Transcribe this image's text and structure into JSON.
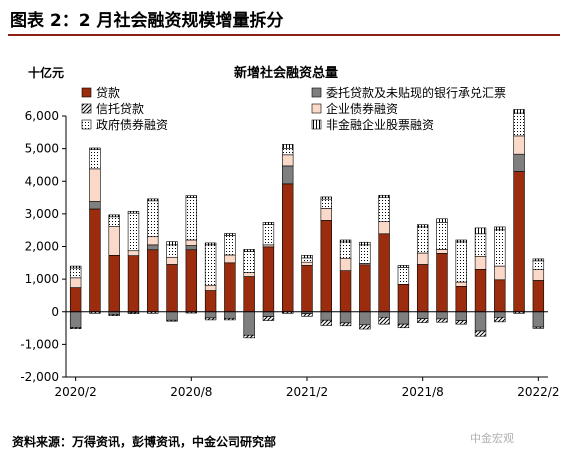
{
  "figure": {
    "title": "图表 2：2 月社会融资规模增量拆分",
    "source": "资料来源：万得资讯，彭博资讯，中金公司研究部",
    "watermark": "中金宏观"
  },
  "chart_data": {
    "type": "bar",
    "stacked": true,
    "title": "新增社会融资总量",
    "unit_label": "十亿元",
    "ylim": [
      -2000,
      6000
    ],
    "yticks": [
      -2000,
      -1000,
      0,
      1000,
      2000,
      3000,
      4000,
      5000,
      6000
    ],
    "ytick_labels": [
      "-2,000",
      "-1,000",
      "0",
      "1,000",
      "2,000",
      "3,000",
      "4,000",
      "5,000",
      "6,000"
    ],
    "categories": [
      "2020/2",
      "2020/3",
      "2020/4",
      "2020/5",
      "2020/6",
      "2020/7",
      "2020/8",
      "2020/9",
      "2020/10",
      "2020/11",
      "2020/12",
      "2021/1",
      "2021/2",
      "2021/3",
      "2021/4",
      "2021/5",
      "2021/6",
      "2021/7",
      "2021/8",
      "2021/9",
      "2021/10",
      "2021/11",
      "2021/12",
      "2022/1",
      "2022/2"
    ],
    "xtick_labels": [
      {
        "index": 0,
        "label": "2020/2"
      },
      {
        "index": 6,
        "label": "2020/8"
      },
      {
        "index": 12,
        "label": "2021/2"
      },
      {
        "index": 18,
        "label": "2021/8"
      },
      {
        "index": 24,
        "label": "2022/2"
      }
    ],
    "series": [
      {
        "name": "贷款",
        "color": "#9b2d0e",
        "pattern": "solid",
        "values": [
          740,
          3150,
          1730,
          1720,
          1900,
          1450,
          1900,
          650,
          1500,
          1080,
          1990,
          3920,
          1420,
          2800,
          1260,
          1440,
          2390,
          840,
          1450,
          1790,
          780,
          1300,
          980,
          4300,
          960
        ]
      },
      {
        "name": "委托贷款及未贴现的银行承兑汇票",
        "color": "#7f7f7f",
        "pattern": "solid",
        "values": [
          -480,
          230,
          -80,
          -20,
          150,
          -260,
          130,
          -190,
          -200,
          -720,
          -150,
          550,
          -60,
          -260,
          -340,
          -400,
          -170,
          -380,
          -210,
          -220,
          -270,
          -590,
          -170,
          530,
          -470
        ]
      },
      {
        "name": "信托贷款",
        "color": "#ffffff",
        "pattern": "diagonal",
        "values": [
          -40,
          -50,
          -40,
          -40,
          -50,
          -30,
          -40,
          -60,
          -50,
          -80,
          -120,
          -50,
          -80,
          -160,
          -90,
          -130,
          -210,
          -110,
          -120,
          -100,
          -110,
          -160,
          -140,
          -50,
          -40
        ]
      },
      {
        "name": "企业债券融资",
        "color": "#fbd9c9",
        "pattern": "solid",
        "values": [
          300,
          1000,
          880,
          150,
          250,
          220,
          170,
          150,
          240,
          120,
          60,
          340,
          100,
          370,
          380,
          40,
          370,
          0,
          350,
          120,
          130,
          400,
          420,
          560,
          330
        ]
      },
      {
        "name": "政府债券融资",
        "color": "#ffffff",
        "pattern": "dots",
        "values": [
          300,
          600,
          300,
          1150,
          1100,
          380,
          1300,
          1250,
          600,
          650,
          630,
          200,
          130,
          280,
          500,
          570,
          750,
          520,
          800,
          830,
          1230,
          690,
          1110,
          700,
          270
        ]
      },
      {
        "name": "非金融企业股票融资",
        "color": "#ffffff",
        "pattern": "vlines",
        "values": [
          60,
          40,
          60,
          60,
          60,
          100,
          60,
          60,
          60,
          60,
          60,
          120,
          80,
          70,
          60,
          80,
          60,
          60,
          70,
          110,
          60,
          180,
          90,
          110,
          60
        ]
      }
    ],
    "grid": false,
    "legend_position": "top"
  }
}
